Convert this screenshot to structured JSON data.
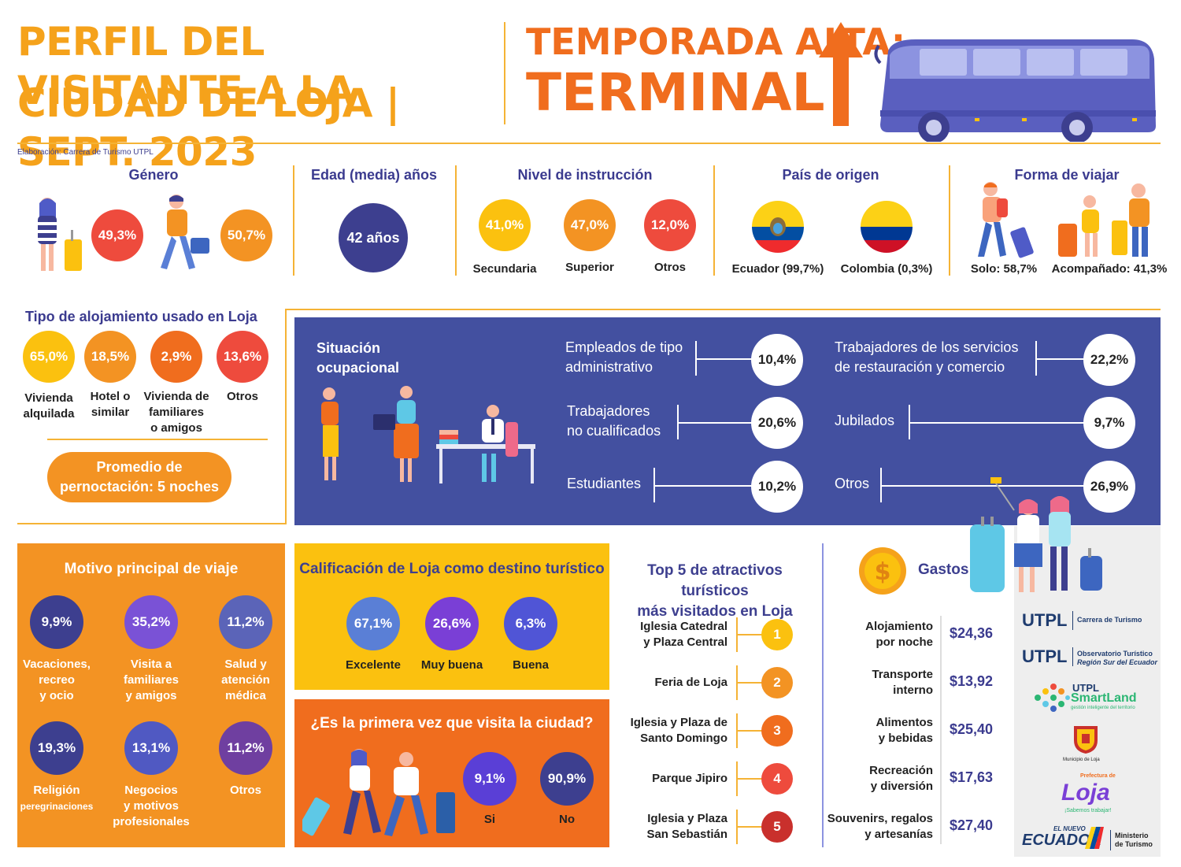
{
  "header": {
    "title_line1": "PERFIL DEL VISITANTE A LA",
    "title_line2": "CIUDAD DE LOJA | SEPT. 2023",
    "season_line1": "TEMPORADA ALTA:",
    "season_line2": "TERMINAL",
    "credit": "Elaboración: Carrera de Turismo UTPL"
  },
  "genero": {
    "title": "Género",
    "female_pct": "49,3%",
    "male_pct": "50,7%"
  },
  "edad": {
    "title": "Edad (media) años",
    "value": "42 años"
  },
  "instruccion": {
    "title": "Nivel de instrucción",
    "items": [
      {
        "value": "41,0%",
        "label": "Secundaria"
      },
      {
        "value": "47,0%",
        "label": "Superior"
      },
      {
        "value": "12,0%",
        "label": "Otros"
      }
    ]
  },
  "pais": {
    "title": "País de origen",
    "items": [
      {
        "label": "Ecuador (99,7%)"
      },
      {
        "label": "Colombia (0,3%)"
      }
    ]
  },
  "forma_viajar": {
    "title": "Forma de viajar",
    "solo": "Solo: 58,7%",
    "acompanado": "Acompañado: 41,3%"
  },
  "alojamiento": {
    "title": "Tipo de alojamiento usado en Loja",
    "items": [
      {
        "value": "65,0%",
        "label_1": "Vivienda",
        "label_2": "alquilada",
        "label_3": ""
      },
      {
        "value": "18,5%",
        "label_1": "Hotel o",
        "label_2": "similar",
        "label_3": ""
      },
      {
        "value": "2,9%",
        "label_1": "Vivienda de",
        "label_2": "familiares",
        "label_3": "o amigos"
      },
      {
        "value": "13,6%",
        "label_1": "Otros",
        "label_2": "",
        "label_3": ""
      }
    ],
    "pernocta_1": "Promedio de",
    "pernocta_2": "pernoctación: 5 noches"
  },
  "ocupacion": {
    "title_1": "Situación",
    "title_2": "ocupacional",
    "left": [
      {
        "label_1": "Empleados de tipo",
        "label_2": "administrativo",
        "value": "10,4%"
      },
      {
        "label_1": "Trabajadores",
        "label_2": "no cualificados",
        "value": "20,6%"
      },
      {
        "label_1": "Estudiantes",
        "label_2": "",
        "value": "10,2%"
      }
    ],
    "right": [
      {
        "label_1": "Trabajadores de los servicios",
        "label_2": "de restauración y comercio",
        "value": "22,2%"
      },
      {
        "label_1": "Jubilados",
        "label_2": "",
        "value": "9,7%"
      },
      {
        "label_1": "Otros",
        "label_2": "",
        "value": "26,9%"
      }
    ]
  },
  "motivo": {
    "title": "Motivo principal de viaje",
    "items": [
      {
        "value": "9,9%",
        "label_1": "Vacaciones,",
        "label_2": "recreo",
        "label_3": "y ocio",
        "color": "#3d3f8f"
      },
      {
        "value": "35,2%",
        "label_1": "Visita a",
        "label_2": "familiares",
        "label_3": "y amigos",
        "color": "#7a52d6"
      },
      {
        "value": "11,2%",
        "label_1": "Salud y",
        "label_2": "atención",
        "label_3": "médica",
        "color": "#5b64b8"
      },
      {
        "value": "19,3%",
        "label_1": "Religión",
        "label_2": "peregrinaciones",
        "label_3": "",
        "color": "#3d3f8f"
      },
      {
        "value": "13,1%",
        "label_1": "Negocios",
        "label_2": "y motivos",
        "label_3": "profesionales",
        "color": "#5059c2"
      },
      {
        "value": "11,2%",
        "label_1": "Otros",
        "label_2": "",
        "label_3": "",
        "color": "#6f3fa0"
      }
    ]
  },
  "calificacion": {
    "title": "Calificación de Loja como destino turístico",
    "items": [
      {
        "value": "67,1%",
        "label": "Excelente"
      },
      {
        "value": "26,6%",
        "label": "Muy buena"
      },
      {
        "value": "6,3%",
        "label": "Buena"
      }
    ]
  },
  "primera_vez": {
    "title": "¿Es la primera vez que visita la ciudad?",
    "si_value": "9,1%",
    "si_label": "Si",
    "no_value": "90,9%",
    "no_label": "No"
  },
  "atractivos": {
    "title_1": "Top 5 de atractivos turísticos",
    "title_2": "más visitados en Loja",
    "items": [
      {
        "rank": "1",
        "label_1": "Iglesia Catedral",
        "label_2": "y Plaza Central"
      },
      {
        "rank": "2",
        "label_1": "Feria de Loja",
        "label_2": ""
      },
      {
        "rank": "3",
        "label_1": "Iglesia y Plaza de",
        "label_2": "Santo Domingo"
      },
      {
        "rank": "4",
        "label_1": "Parque Jipiro",
        "label_2": ""
      },
      {
        "rank": "5",
        "label_1": "Iglesia y Plaza",
        "label_2": "San Sebastián"
      }
    ]
  },
  "gastos": {
    "title": "Gastos",
    "items": [
      {
        "label_1": "Alojamiento",
        "label_2": "por noche",
        "value": "$24,36"
      },
      {
        "label_1": "Transporte",
        "label_2": "interno",
        "value": "$13,92"
      },
      {
        "label_1": "Alimentos",
        "label_2": "y bebidas",
        "value": "$25,40"
      },
      {
        "label_1": "Recreación",
        "label_2": "y diversión",
        "value": "$17,63"
      },
      {
        "label_1": "Souvenirs, regalos",
        "label_2": "y artesanías",
        "value": "$27,40"
      }
    ]
  },
  "logos": {
    "utpl": "UTPL",
    "carrera": "Carrera de Turismo",
    "observatorio_1": "Observatorio Turístico",
    "observatorio_2": "Región Sur del Ecuador",
    "smartland_utpl": "UTPL",
    "smartland": "SmartLand",
    "smartland_sub": "gestión inteligente del territorio",
    "municipio": "Municipio de Loja",
    "prefectura": "Prefectura de",
    "loja": "Loja",
    "loja_sub": "¡Sabemos trabajar!",
    "nuevo": "EL NUEVO",
    "ecuador": "ECUADOR",
    "ministerio_1": "Ministerio",
    "ministerio_2": "de Turismo"
  },
  "colors": {
    "orange": "#f39323",
    "dark_orange": "#f06d1e",
    "yellow": "#fbc10f",
    "red": "#ee4b3d",
    "navy": "#3d3f8f",
    "panel_blue": "#4350a0"
  }
}
